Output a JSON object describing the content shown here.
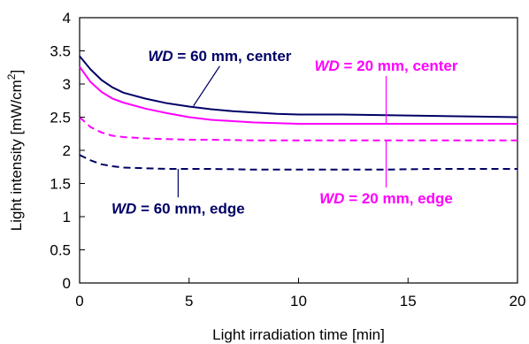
{
  "chart_data": {
    "type": "line",
    "title": "",
    "xlabel": "Light irradiation time [min]",
    "ylabel_parts": {
      "main": "Light intensity [mW/cm",
      "sup": "2",
      "close": "]"
    },
    "xlim": [
      0,
      20
    ],
    "ylim": [
      0,
      4
    ],
    "xticks": [
      0,
      5,
      10,
      15,
      20
    ],
    "yticks": [
      0,
      0.5,
      1,
      1.5,
      2,
      2.5,
      3,
      3.5,
      4
    ],
    "xtick_labels": [
      "0",
      "5",
      "10",
      "15",
      "20"
    ],
    "ytick_labels": [
      "0",
      "0.5",
      "1",
      "1.5",
      "2",
      "2.5",
      "3",
      "3.5",
      "4"
    ],
    "grid": false,
    "legend": "none",
    "series": [
      {
        "color": "#000066",
        "dash": "solid",
        "x": [
          0,
          0.5,
          1,
          1.5,
          2,
          3,
          4,
          5,
          6,
          7,
          8,
          9,
          10,
          12,
          14,
          16,
          18,
          20
        ],
        "y": [
          3.42,
          3.22,
          3.06,
          2.95,
          2.87,
          2.78,
          2.71,
          2.66,
          2.62,
          2.59,
          2.57,
          2.55,
          2.54,
          2.54,
          2.53,
          2.52,
          2.51,
          2.5
        ]
      },
      {
        "color": "#ff00ff",
        "dash": "solid",
        "x": [
          0,
          0.5,
          1,
          1.5,
          2,
          3,
          4,
          5,
          6,
          7,
          8,
          9,
          10,
          12,
          14,
          16,
          18,
          20
        ],
        "y": [
          3.26,
          3.03,
          2.88,
          2.78,
          2.72,
          2.63,
          2.56,
          2.5,
          2.46,
          2.44,
          2.42,
          2.41,
          2.4,
          2.4,
          2.4,
          2.4,
          2.4,
          2.4
        ]
      },
      {
        "color": "#ff00ff",
        "dash": "dashed",
        "x": [
          0,
          0.5,
          1,
          1.5,
          2,
          3,
          4,
          5,
          6,
          8,
          10,
          12,
          14,
          16,
          18,
          20
        ],
        "y": [
          2.5,
          2.35,
          2.27,
          2.22,
          2.2,
          2.18,
          2.17,
          2.16,
          2.16,
          2.15,
          2.15,
          2.15,
          2.15,
          2.15,
          2.15,
          2.15
        ]
      },
      {
        "color": "#000066",
        "dash": "dashed",
        "x": [
          0,
          0.5,
          1,
          1.5,
          2,
          3,
          4,
          5,
          6,
          8,
          10,
          12,
          14,
          16,
          18,
          20
        ],
        "y": [
          1.93,
          1.85,
          1.79,
          1.76,
          1.74,
          1.73,
          1.72,
          1.72,
          1.72,
          1.71,
          1.71,
          1.71,
          1.71,
          1.72,
          1.72,
          1.72
        ]
      }
    ],
    "annotations": [
      {
        "italic": "WD",
        "rest": " = 60 mm, center",
        "color": "#000066",
        "at": [
          5.2,
          2.67
        ],
        "text_anchor": [
          6.4,
          3.35
        ]
      },
      {
        "italic": "WD",
        "rest": " = 20 mm, center",
        "color": "#ff00ff",
        "at": [
          14.0,
          2.4
        ],
        "text_anchor": [
          14.0,
          3.2
        ]
      },
      {
        "italic": "WD",
        "rest": " = 60 mm, edge",
        "color": "#000066",
        "at": [
          4.5,
          1.72
        ],
        "text_anchor": [
          4.5,
          1.05
        ]
      },
      {
        "italic": "WD",
        "rest": " = 20 mm, edge",
        "color": "#ff00ff",
        "at": [
          14.0,
          2.15
        ],
        "text_anchor": [
          14.0,
          1.2
        ]
      }
    ]
  }
}
